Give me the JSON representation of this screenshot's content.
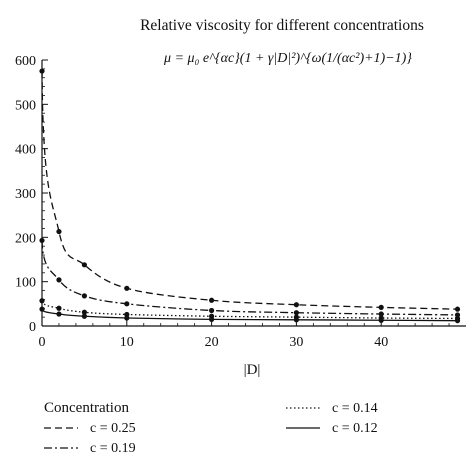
{
  "chart_data": {
    "type": "line",
    "title": "Relative viscosity for different concentrations",
    "subtitle": "μ = μ₀ e^{αc}(1 + γ|D|²)^{ω(1/(αc²)+1)−1)}",
    "xlabel": "|D|",
    "ylabel": "",
    "xlim": [
      0,
      50
    ],
    "ylim": [
      0,
      600
    ],
    "x_ticks": [
      "0",
      "10",
      "20",
      "30",
      "40"
    ],
    "y_ticks": [
      "0",
      "100",
      "200",
      "300",
      "400",
      "500",
      "600"
    ],
    "legend_title": "Concentration",
    "legend_placement": "bottom",
    "grid": false,
    "x": [
      0,
      2,
      5,
      10,
      20,
      30,
      40,
      49
    ],
    "series": [
      {
        "name": "c = 0.25",
        "style": "dashed",
        "values": [
          575,
          213,
          138,
          85,
          58,
          48,
          42,
          38
        ]
      },
      {
        "name": "c = 0.19",
        "style": "dashdot",
        "values": [
          193,
          104,
          68,
          50,
          35,
          30,
          27,
          25
        ]
      },
      {
        "name": "c = 0.14",
        "style": "dotted",
        "values": [
          57,
          40,
          31,
          26,
          22,
          20,
          18,
          17
        ]
      },
      {
        "name": "c = 0.12",
        "style": "solid",
        "values": [
          38,
          27,
          22,
          18,
          15,
          14,
          13,
          12
        ]
      }
    ],
    "data_points_x": [
      0,
      2,
      5,
      10,
      20,
      30,
      40,
      49
    ]
  }
}
